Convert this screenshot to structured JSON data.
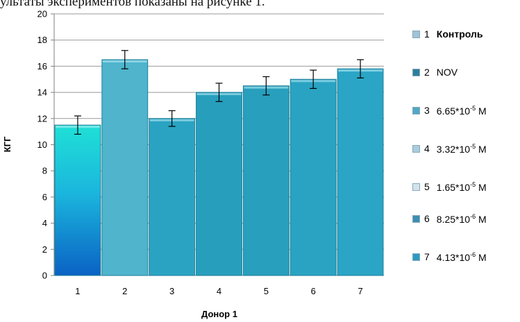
{
  "page": {
    "caption_fragment": "ультаты экспериментов показаны на рисунке 1."
  },
  "chart_data": {
    "type": "bar",
    "title": "",
    "xlabel": "Донор 1",
    "ylabel": "КГГ",
    "ylim": [
      0,
      20
    ],
    "yticks": [
      0,
      2,
      4,
      6,
      8,
      10,
      12,
      14,
      16,
      18,
      20
    ],
    "grid": true,
    "legend_position": "right",
    "categories": [
      "1",
      "2",
      "3",
      "4",
      "5",
      "6",
      "7"
    ],
    "values": [
      11.5,
      16.5,
      12.0,
      14.0,
      14.5,
      15.0,
      15.8
    ],
    "errors": [
      0.7,
      0.7,
      0.6,
      0.7,
      0.7,
      0.7,
      0.7
    ],
    "bar_colors": [
      "#1fb8d8",
      "#4fb4cc",
      "#2aa3c2",
      "#279ebc",
      "#289fbd",
      "#2aa3c2",
      "#2aa5c5"
    ],
    "legend": [
      {
        "num": "1",
        "label": "Контроль",
        "bold": true,
        "base": "",
        "exp": "",
        "unit": "",
        "color": "#9ec4d6"
      },
      {
        "num": "2",
        "label": "NOV",
        "bold": false,
        "base": "",
        "exp": "",
        "unit": "",
        "color": "#2b7f9c"
      },
      {
        "num": "3",
        "label": "",
        "bold": false,
        "base": "6.65*10",
        "exp": "-5",
        "unit": " M",
        "color": "#4fa9c6"
      },
      {
        "num": "4",
        "label": "",
        "bold": false,
        "base": "3.32*10",
        "exp": "-5",
        "unit": " M",
        "color": "#a9cddd"
      },
      {
        "num": "5",
        "label": "",
        "bold": false,
        "base": "1.65*10",
        "exp": "-5",
        "unit": " M",
        "color": "#d2e3ec"
      },
      {
        "num": "6",
        "label": "",
        "bold": false,
        "base": "8.25*10",
        "exp": "-6",
        "unit": " M",
        "color": "#3d8fb2"
      },
      {
        "num": "7",
        "label": "",
        "bold": false,
        "base": "4.13*10",
        "exp": "-6",
        "unit": " M",
        "color": "#2a9cc0"
      }
    ]
  }
}
